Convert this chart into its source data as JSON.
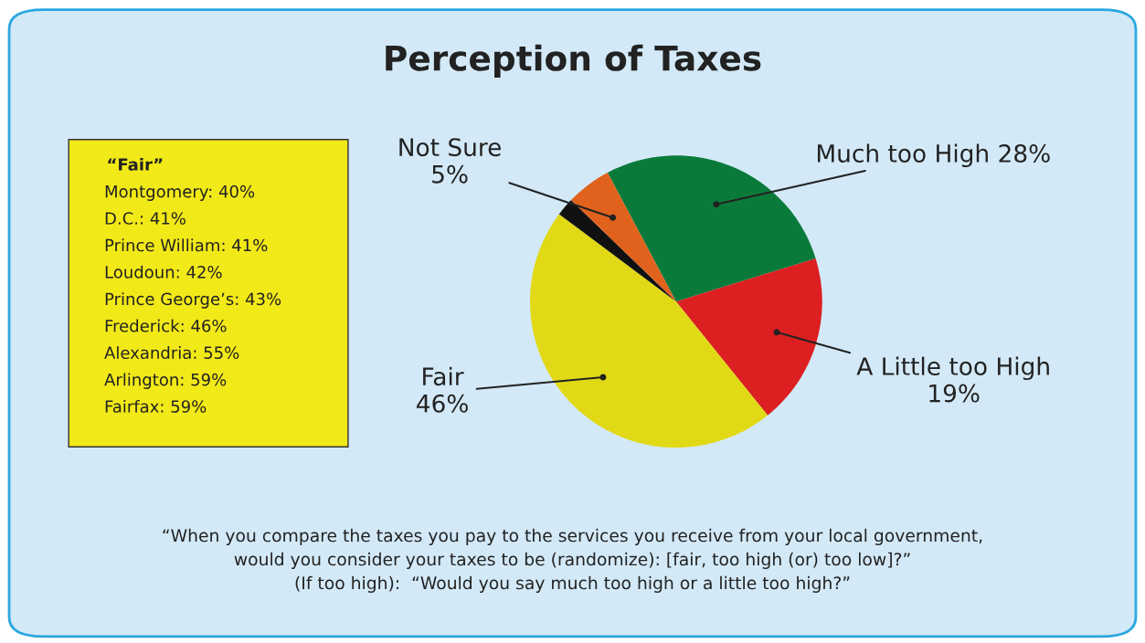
{
  "chart_data": {
    "type": "pie",
    "title": "Perception of Taxes",
    "categories": [
      "Much too High",
      "A Little too High",
      "Fair",
      null,
      "Not Sure"
    ],
    "values": [
      28,
      19,
      46,
      2,
      5
    ],
    "value_labels": [
      "28%",
      "19%",
      "46%",
      null,
      "5%"
    ],
    "colors": [
      "#0a7a3a",
      "#dc1f20",
      "#e2d916",
      "#111111",
      "#e0621c"
    ],
    "annotations": [
      "“Fair”",
      "Montgomery: 40%",
      "D.C.: 41%",
      "Prince William: 41%",
      "Loudoun: 42%",
      "Prince George’s: 43%",
      "Frederick: 46%",
      "Alexandria: 55%",
      "Arlington: 59%",
      "Fairfax: 59%",
      "“When you compare the taxes you pay to the services you receive from your local government,\nwould you consider your taxes to be (randomize): [fair, too high (or) too low]?”\n(If too high):  “Would you say much too high or a little too high?”"
    ]
  }
}
